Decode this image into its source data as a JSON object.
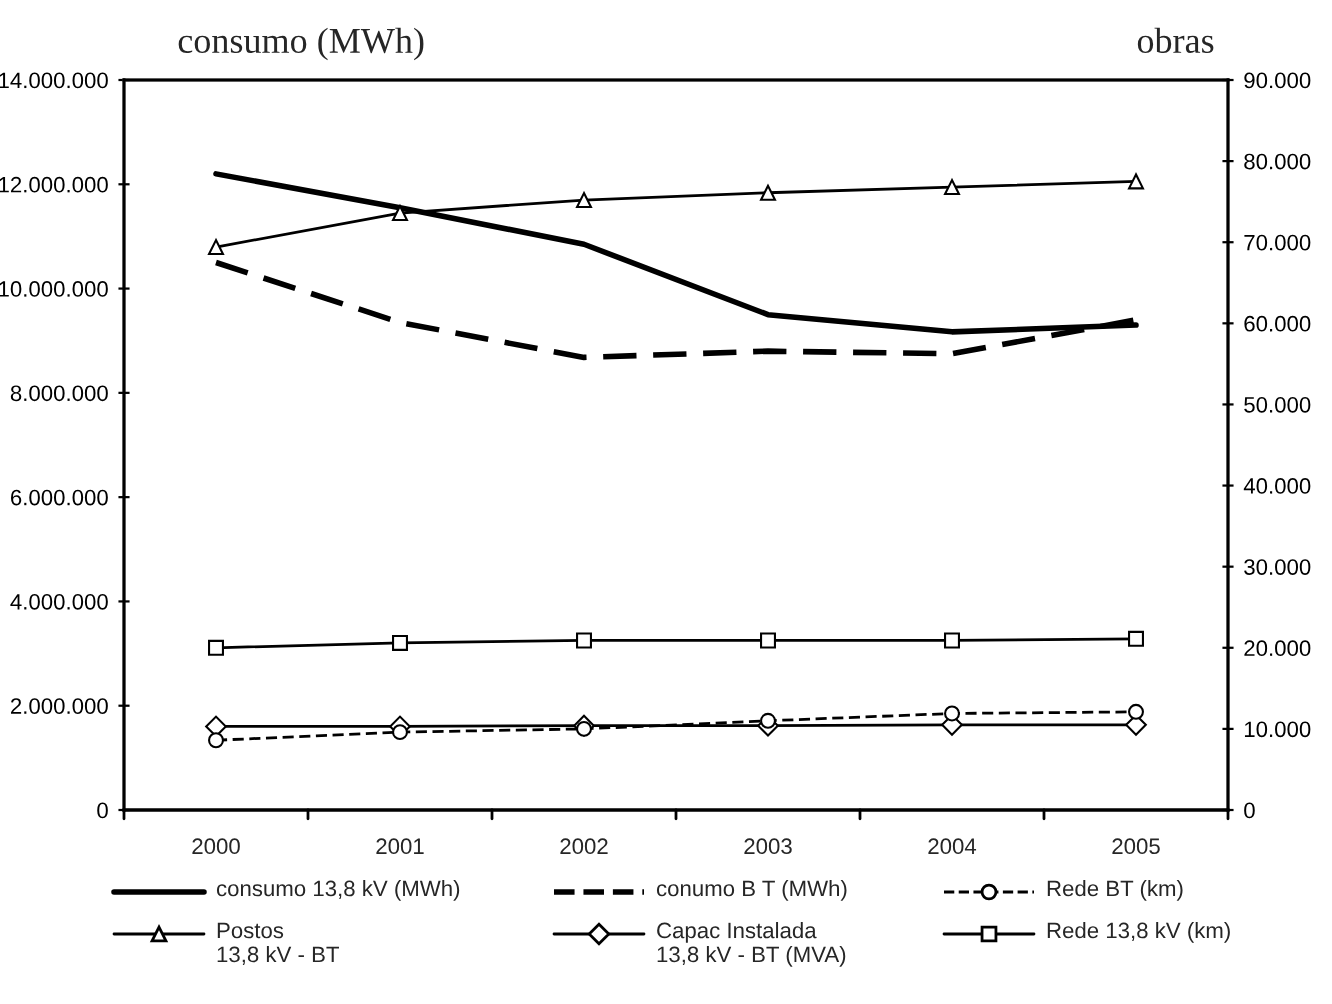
{
  "chart_data": {
    "type": "line",
    "categories": [
      "2000",
      "2001",
      "2002",
      "2003",
      "2004",
      "2005"
    ],
    "ylabel": "consumo (MWh)",
    "y2label": "obras",
    "ylim": [
      0,
      14000000
    ],
    "yticks": [
      {
        "value": 0,
        "label": "0"
      },
      {
        "value": 2000000,
        "label": "2.000.000"
      },
      {
        "value": 4000000,
        "label": "4.000.000"
      },
      {
        "value": 6000000,
        "label": "6.000.000"
      },
      {
        "value": 8000000,
        "label": "8.000.000"
      },
      {
        "value": 10000000,
        "label": "10.000.000"
      },
      {
        "value": 12000000,
        "label": "12.000.000"
      },
      {
        "value": 14000000,
        "label": "14.000.000"
      }
    ],
    "y2lim": [
      0,
      90000
    ],
    "y2ticks": [
      {
        "value": 0,
        "label": "0"
      },
      {
        "value": 10000,
        "label": "10.000"
      },
      {
        "value": 20000,
        "label": "20.000"
      },
      {
        "value": 30000,
        "label": "30.000"
      },
      {
        "value": 40000,
        "label": "40.000"
      },
      {
        "value": 50000,
        "label": "50.000"
      },
      {
        "value": 60000,
        "label": "60.000"
      },
      {
        "value": 70000,
        "label": "70.000"
      },
      {
        "value": 80000,
        "label": "80.000"
      },
      {
        "value": 90000,
        "label": "90.000"
      }
    ],
    "grid": false,
    "legend": "bottom",
    "series": [
      {
        "name": "consumo 13,8 kV (MWh)",
        "color": "#000000",
        "line_style": "solid",
        "marker": "none",
        "values": [
          12200000,
          11550000,
          10850000,
          9500000,
          9170000,
          9300000
        ]
      },
      {
        "name": "conumo B T (MWh)",
        "color": "#000000",
        "line_style": "dashed",
        "marker": "none",
        "values": [
          10500000,
          9350000,
          8680000,
          8800000,
          8750000,
          9400000
        ]
      },
      {
        "name": "Rede BT (km)",
        "color": "#000000",
        "line_style": "dashed",
        "marker": "circle",
        "axis": "y2",
        "values": [
          8600,
          9600,
          10000,
          11000,
          11900,
          12100
        ]
      },
      {
        "name": "Postos\n13,8 kV - BT",
        "color": "#000000",
        "line_style": "solid",
        "marker": "triangle",
        "axis": "y2",
        "values": [
          69400,
          73600,
          75200,
          76100,
          76800,
          77500
        ]
      },
      {
        "name": "Capac Instalada\n13,8 kV - BT (MVA)",
        "color": "#000000",
        "line_style": "solid",
        "marker": "diamond",
        "axis": "y2",
        "values": [
          10300,
          10300,
          10400,
          10400,
          10500,
          10500
        ]
      },
      {
        "name": "Rede 13,8 kV (km)",
        "color": "#000000",
        "line_style": "solid",
        "marker": "square",
        "axis": "y2",
        "values": [
          20000,
          20600,
          20900,
          20900,
          20900,
          21100
        ]
      }
    ]
  }
}
